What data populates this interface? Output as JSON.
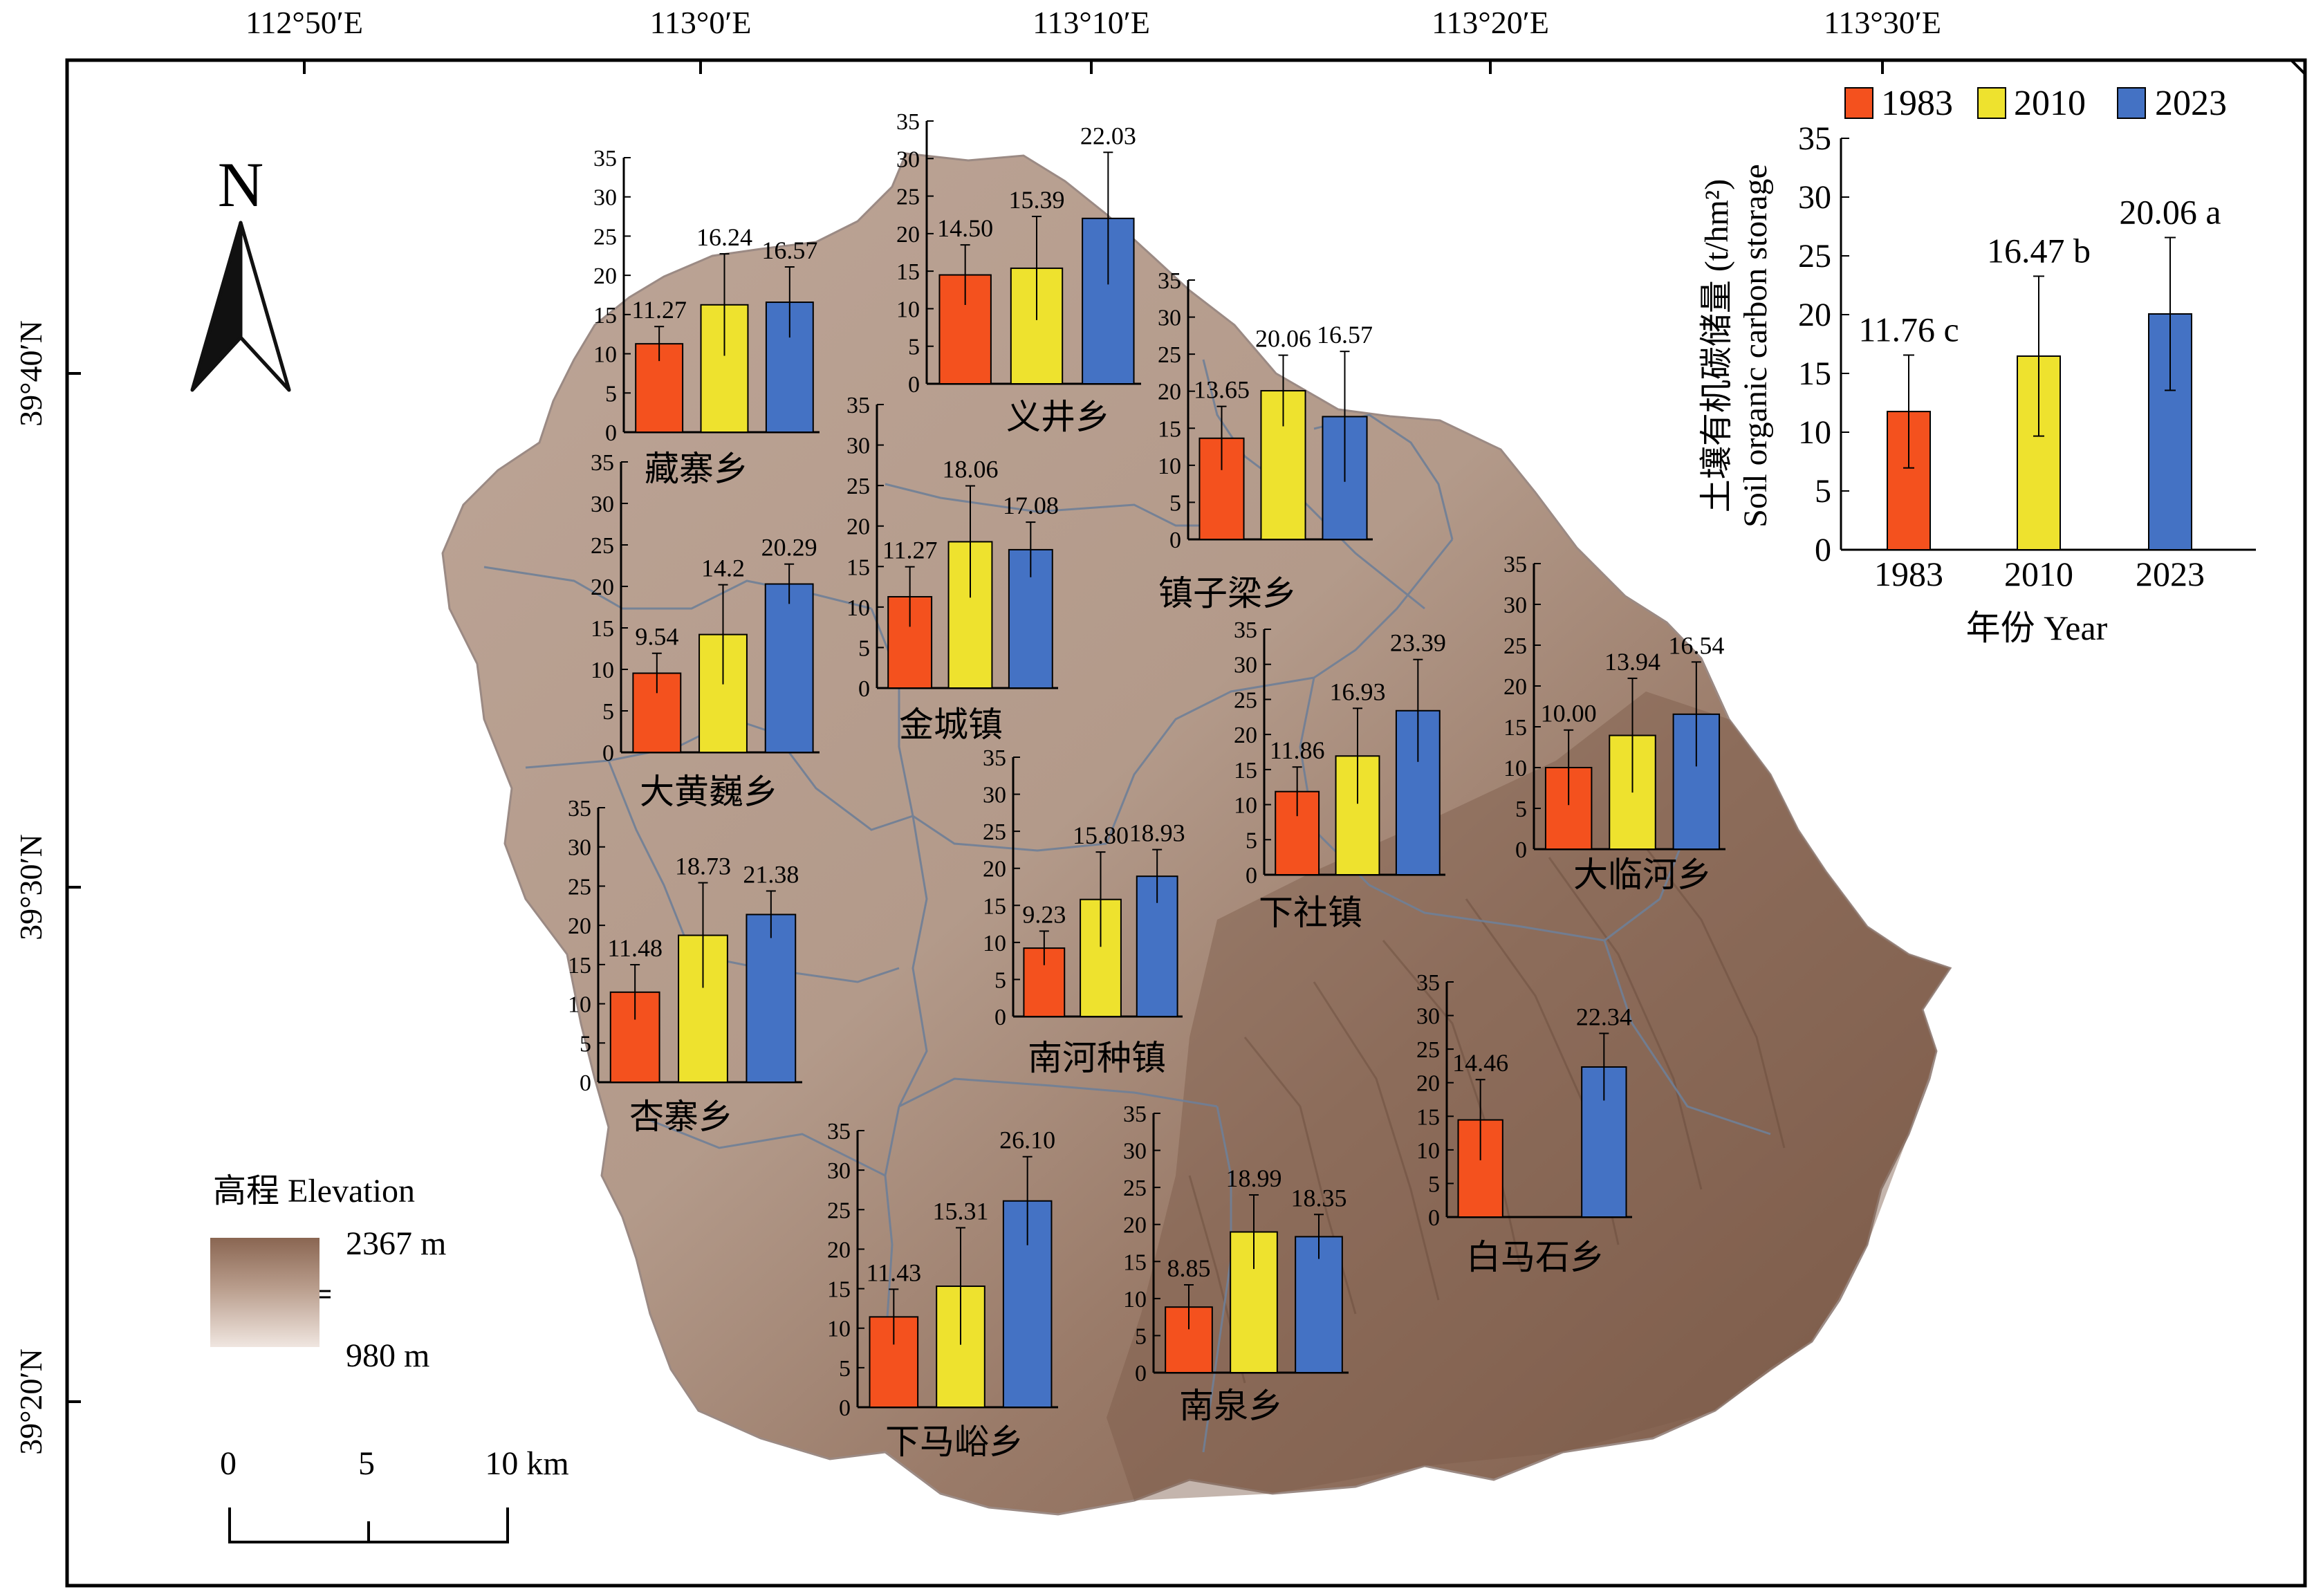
{
  "coords": {
    "lon": [
      "112°50′E",
      "113°0′E",
      "113°10′E",
      "113°20′E",
      "113°30′E"
    ],
    "lat": [
      "39°40′N",
      "39°30′N",
      "39°20′N"
    ]
  },
  "north": "N",
  "legend_years": [
    "1983",
    "2010",
    "2023"
  ],
  "colors": {
    "y1983": "#f4511e",
    "y2010": "#eee22e",
    "y2023": "#4472c4",
    "terrain_light": "#b9a091",
    "terrain_dark": "#7d5c4a",
    "frame": "#000000"
  },
  "elevation": {
    "title": "高程 Elevation",
    "max": "2367 m",
    "min": "980 m"
  },
  "scale": {
    "labels": [
      "0",
      "5",
      "10 km"
    ]
  },
  "ticks": [
    "0",
    "5",
    "10",
    "15",
    "20",
    "25",
    "30",
    "35"
  ],
  "summary": {
    "ylabel_cn": "土壤有机碳储量 (t/hm²)",
    "ylabel_en": "Soil organic carbon storage",
    "xlabel": "年份 Year",
    "categories": [
      "1983",
      "2010",
      "2023"
    ],
    "values": [
      11.76,
      16.47,
      20.06
    ],
    "labels": [
      "11.76 c",
      "16.47 b",
      "20.06 a"
    ],
    "ylim": [
      0,
      35
    ]
  },
  "chart_data": [
    {
      "type": "bar",
      "title": "藏寨乡",
      "categories": [
        "1983",
        "2010",
        "2023"
      ],
      "values": [
        11.27,
        16.24,
        16.57
      ],
      "labels": [
        "11.27",
        "16.24",
        "16.57"
      ],
      "ylim": [
        0,
        35
      ]
    },
    {
      "type": "bar",
      "title": "义井乡",
      "categories": [
        "1983",
        "2010",
        "2023"
      ],
      "values": [
        14.5,
        15.39,
        22.03
      ],
      "labels": [
        "14.50",
        "15.39",
        "22.03"
      ],
      "ylim": [
        0,
        35
      ]
    },
    {
      "type": "bar",
      "title": "镇子梁乡",
      "categories": [
        "1983",
        "2010",
        "2023"
      ],
      "values": [
        13.65,
        20.06,
        16.57
      ],
      "labels": [
        "13.65",
        "20.06",
        "16.57"
      ],
      "ylim": [
        0,
        35
      ]
    },
    {
      "type": "bar",
      "title": "大黄巍乡",
      "categories": [
        "1983",
        "2010",
        "2023"
      ],
      "values": [
        9.54,
        14.2,
        20.29
      ],
      "labels": [
        "9.54",
        "14.2",
        "20.29"
      ],
      "ylim": [
        0,
        35
      ]
    },
    {
      "type": "bar",
      "title": "金城镇",
      "categories": [
        "1983",
        "2010",
        "2023"
      ],
      "values": [
        11.27,
        18.06,
        17.08
      ],
      "labels": [
        "11.27",
        "18.06",
        "17.08"
      ],
      "ylim": [
        0,
        35
      ]
    },
    {
      "type": "bar",
      "title": "下社镇",
      "categories": [
        "1983",
        "2010",
        "2023"
      ],
      "values": [
        11.86,
        16.93,
        23.39
      ],
      "labels": [
        "11.86",
        "16.93",
        "23.39"
      ],
      "ylim": [
        0,
        35
      ]
    },
    {
      "type": "bar",
      "title": "大临河乡",
      "categories": [
        "1983",
        "2010",
        "2023"
      ],
      "values": [
        10.0,
        13.94,
        16.54
      ],
      "labels": [
        "10.00",
        "13.94",
        "16.54"
      ],
      "ylim": [
        0,
        35
      ]
    },
    {
      "type": "bar",
      "title": "杏寨乡",
      "categories": [
        "1983",
        "2010",
        "2023"
      ],
      "values": [
        11.48,
        18.73,
        21.38
      ],
      "labels": [
        "11.48",
        "18.73",
        "21.38"
      ],
      "ylim": [
        0,
        35
      ]
    },
    {
      "type": "bar",
      "title": "南河种镇",
      "categories": [
        "1983",
        "2010",
        "2023"
      ],
      "values": [
        9.23,
        15.8,
        18.93
      ],
      "labels": [
        "9.23",
        "15.80",
        "18.93"
      ],
      "ylim": [
        0,
        35
      ]
    },
    {
      "type": "bar",
      "title": "白马石乡",
      "categories": [
        "1983",
        "2023"
      ],
      "values": [
        14.46,
        22.34
      ],
      "labels": [
        "14.46",
        "22.34"
      ],
      "ylim": [
        0,
        35
      ]
    },
    {
      "type": "bar",
      "title": "下马峪乡",
      "categories": [
        "1983",
        "2010",
        "2023"
      ],
      "values": [
        11.43,
        15.31,
        26.1
      ],
      "labels": [
        "11.43",
        "15.31",
        "26.10"
      ],
      "ylim": [
        0,
        35
      ]
    },
    {
      "type": "bar",
      "title": "南泉乡",
      "categories": [
        "1983",
        "2010",
        "2023"
      ],
      "values": [
        8.85,
        18.99,
        18.35
      ],
      "labels": [
        "8.85",
        "18.99",
        "18.35"
      ],
      "ylim": [
        0,
        35
      ]
    }
  ]
}
